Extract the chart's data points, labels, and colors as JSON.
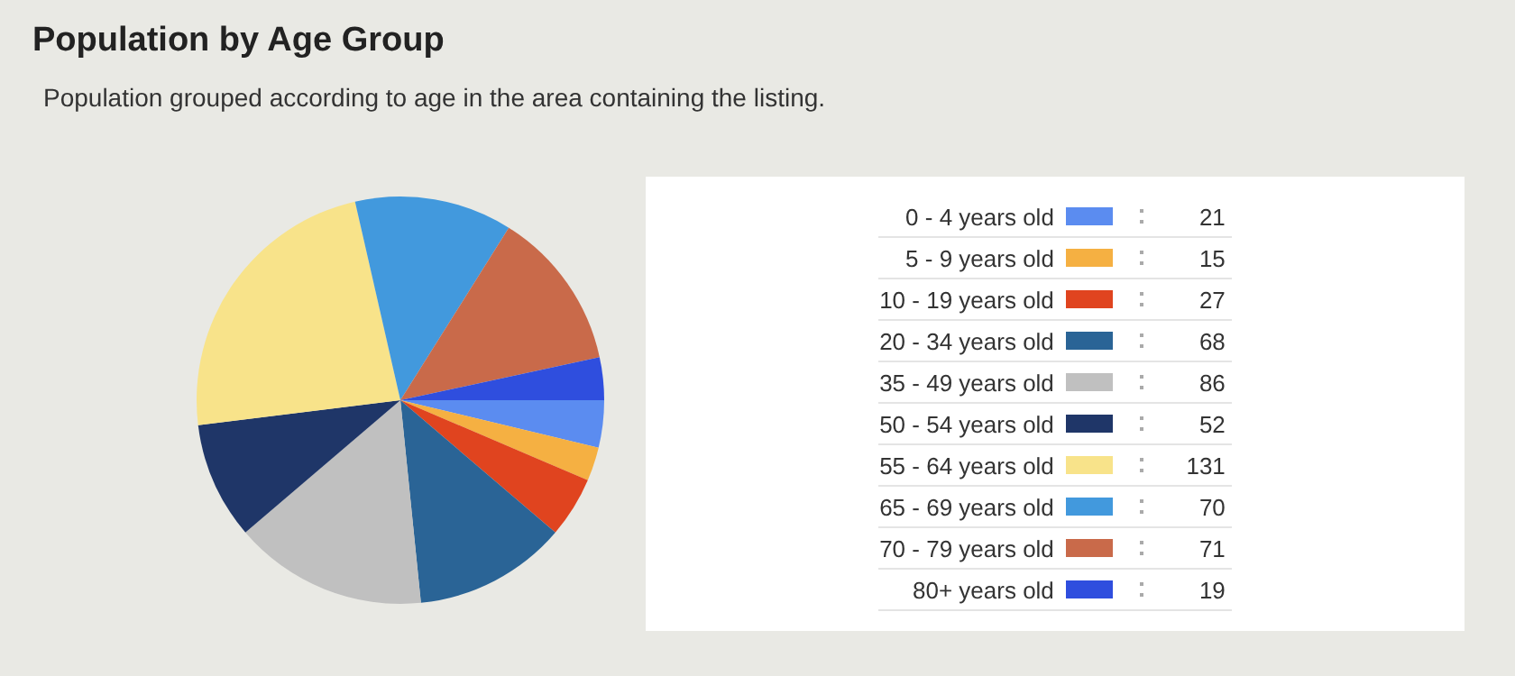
{
  "chart_data": {
    "type": "pie",
    "title": "Population by Age Group",
    "subtitle": "Population grouped according to age in the area containing the listing.",
    "categories": [
      "0 - 4 years old",
      "5 - 9 years old",
      "10 - 19 years old",
      "20 - 34 years old",
      "35 - 49 years old",
      "50 - 54 years old",
      "55 - 64 years old",
      "65 - 69 years old",
      "70 - 79 years old",
      "80+ years old"
    ],
    "values": [
      21,
      15,
      27,
      68,
      86,
      52,
      131,
      70,
      71,
      19
    ],
    "colors": [
      "#5b8cf0",
      "#f5b042",
      "#e0441f",
      "#2a6496",
      "#c0c0c0",
      "#1f3668",
      "#f8e38a",
      "#4299dd",
      "#c96a4a",
      "#2f4ede"
    ],
    "legend": "right",
    "data_labels": true
  }
}
